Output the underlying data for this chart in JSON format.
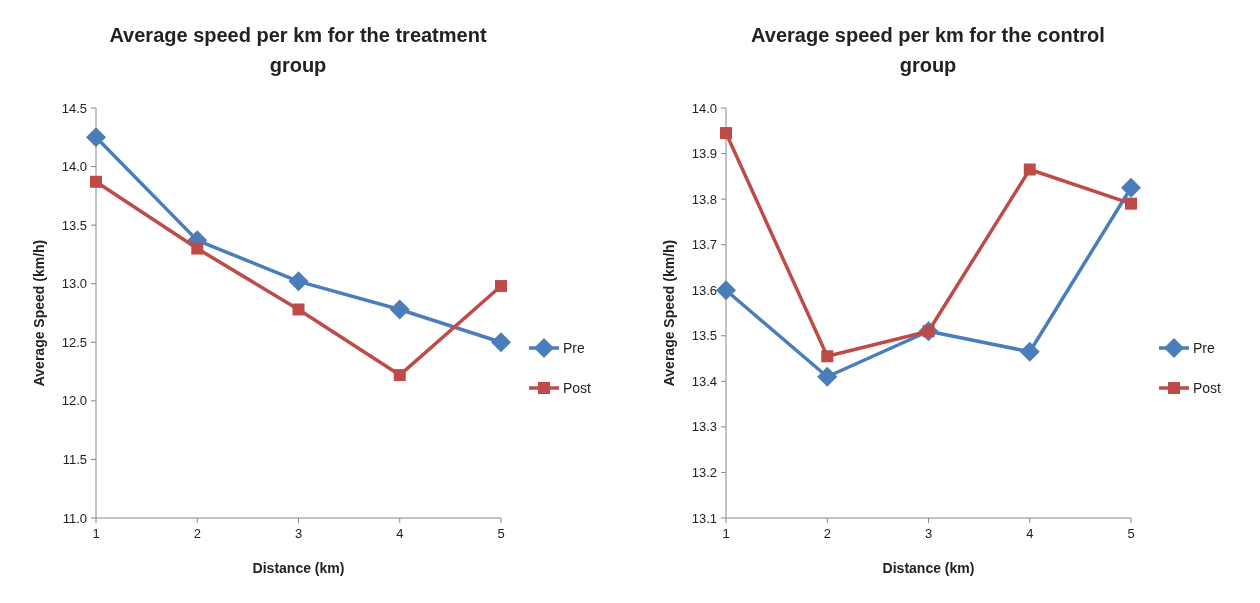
{
  "chart_data": [
    {
      "type": "line",
      "title": "Average speed per km for the treatment group",
      "xlabel": "Distance (km)",
      "ylabel": "Average Speed (km/h)",
      "categories": [
        "1",
        "2",
        "3",
        "4",
        "5"
      ],
      "ylim": [
        11.0,
        14.5
      ],
      "yticks": [
        {
          "value": 11.0,
          "label": "11.0"
        },
        {
          "value": 11.5,
          "label": "11.5"
        },
        {
          "value": 12.0,
          "label": "12.0"
        },
        {
          "value": 12.5,
          "label": "12.5"
        },
        {
          "value": 13.0,
          "label": "13.0"
        },
        {
          "value": 13.5,
          "label": "13.5"
        },
        {
          "value": 14.0,
          "label": "14.0"
        },
        {
          "value": 14.5,
          "label": "14.5"
        }
      ],
      "grid": false,
      "legend": "right",
      "series": [
        {
          "name": "Pre",
          "color": "#4a7ebb",
          "marker": "diamond",
          "values": [
            14.25,
            13.37,
            13.02,
            12.78,
            12.5
          ]
        },
        {
          "name": "Post",
          "color": "#be4b48",
          "marker": "square",
          "values": [
            13.87,
            13.3,
            12.78,
            12.22,
            12.98
          ]
        }
      ]
    },
    {
      "type": "line",
      "title": "Average speed per km for the control group",
      "xlabel": "Distance (km)",
      "ylabel": "Average Speed (km/h)",
      "categories": [
        "1",
        "2",
        "3",
        "4",
        "5"
      ],
      "ylim": [
        13.1,
        14.0
      ],
      "yticks": [
        {
          "value": 13.1,
          "label": "13.1"
        },
        {
          "value": 13.2,
          "label": "13.2"
        },
        {
          "value": 13.3,
          "label": "13.3"
        },
        {
          "value": 13.4,
          "label": "13.4"
        },
        {
          "value": 13.5,
          "label": "13.5"
        },
        {
          "value": 13.6,
          "label": "13.6"
        },
        {
          "value": 13.7,
          "label": "13.7"
        },
        {
          "value": 13.8,
          "label": "13.8"
        },
        {
          "value": 13.9,
          "label": "13.9"
        },
        {
          "value": 14.0,
          "label": "14.0"
        }
      ],
      "grid": false,
      "legend": "right",
      "series": [
        {
          "name": "Pre",
          "color": "#4a7ebb",
          "marker": "diamond",
          "values": [
            13.6,
            13.41,
            13.51,
            13.465,
            13.825
          ]
        },
        {
          "name": "Post",
          "color": "#be4b48",
          "marker": "square",
          "values": [
            13.945,
            13.455,
            13.51,
            13.865,
            13.79
          ]
        }
      ]
    }
  ]
}
